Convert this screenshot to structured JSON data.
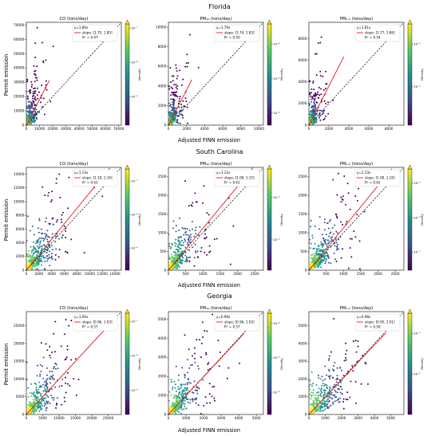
{
  "figure": {
    "shared_xlabel": "Adjusted FINN emission",
    "shared_ylabel": "Permit emission",
    "colorbar_label": "Density",
    "colormap": [
      "#440154",
      "#3b528b",
      "#21918c",
      "#5ec962",
      "#fde725"
    ],
    "fit_line_color": "#e41a1c",
    "identity_line_color": "#000000"
  },
  "rows": [
    {
      "state": "Florida"
    },
    {
      "state": "South Carolina"
    },
    {
      "state": "Georgia"
    }
  ],
  "chart_data": [
    {
      "type": "scatter",
      "state": "Florida",
      "title": "CO (tons/day)",
      "xlim": [
        0,
        72000
      ],
      "ylim": [
        0,
        72000
      ],
      "xticks": [
        0,
        10000,
        20000,
        30000,
        40000,
        50000,
        60000,
        70000
      ],
      "yticks": [
        0,
        10000,
        20000,
        30000,
        40000,
        50000,
        60000,
        70000
      ],
      "legend": {
        "equation": "y=1.80x",
        "slope": "slope: [1.75, 1.85]",
        "r2": "R² = 0.47"
      },
      "fit_slope": 1.8,
      "fit_xmax": 17500,
      "legend_position": "top-left",
      "colorbar": {
        "ticks": [
          "10⁻⁷",
          "10⁻⁸",
          "10⁻⁹"
        ],
        "ticks_frac": [
          0.96,
          0.62,
          0.28
        ]
      },
      "scatter": {
        "seed": 11,
        "n": 380,
        "xscale": 3200,
        "slope": 1.8,
        "spread": 0.75
      }
    },
    {
      "type": "scatter",
      "state": "Florida",
      "title": "PM₁₀ (tons/day)",
      "xlim": [
        0,
        10500
      ],
      "ylim": [
        0,
        10500
      ],
      "xticks": [
        0,
        2000,
        4000,
        6000,
        8000,
        10000
      ],
      "yticks": [
        0,
        2000,
        4000,
        6000,
        8000,
        10000
      ],
      "legend": {
        "equation": "y=1.79x",
        "slope": "slope: [1.74, 1.83]",
        "r2": "R² = 0.50"
      },
      "fit_slope": 1.79,
      "fit_xmax": 2600,
      "legend_position": "top-left",
      "colorbar": {
        "ticks": [
          "10⁻⁴",
          "10⁻⁵",
          "10⁻⁶"
        ],
        "ticks_frac": [
          0.8,
          0.46,
          0.12
        ]
      },
      "scatter": {
        "seed": 23,
        "n": 380,
        "xscale": 500,
        "slope": 1.79,
        "spread": 0.7
      }
    },
    {
      "type": "scatter",
      "state": "Florida",
      "title": "PM₂.₅ (tons/day)",
      "xlim": [
        0,
        9500
      ],
      "ylim": [
        0,
        9500
      ],
      "xticks": [
        0,
        2000,
        4000,
        6000,
        8000
      ],
      "yticks": [
        0,
        2000,
        4000,
        6000,
        8000
      ],
      "legend": {
        "equation": "y=1.81x",
        "slope": "slope: [1.77, 1.86]",
        "r2": "R² = 0.54"
      },
      "fit_slope": 1.81,
      "fit_xmax": 3500,
      "legend_position": "top-left",
      "colorbar": {
        "ticks": [
          "10⁻⁵",
          "10⁻⁶"
        ],
        "ticks_frac": [
          0.8,
          0.38
        ]
      },
      "scatter": {
        "seed": 37,
        "n": 380,
        "xscale": 450,
        "slope": 1.81,
        "spread": 0.7
      }
    },
    {
      "type": "scatter",
      "state": "South Carolina",
      "title": "CO (tons/day)",
      "xlim": [
        0,
        15000
      ],
      "ylim": [
        0,
        15000
      ],
      "xticks": [
        0,
        2000,
        4000,
        6000,
        8000,
        10000,
        12000,
        14000
      ],
      "yticks": [
        0,
        2000,
        4000,
        6000,
        8000,
        10000,
        12000,
        14000
      ],
      "legend": {
        "equation": "y=1.13x",
        "slope": "slope: [1.10, 1.16]",
        "r2": "R² = 0.61"
      },
      "fit_slope": 1.13,
      "fit_xmax": 13200,
      "legend_position": "top-left",
      "colorbar": {
        "ticks": [
          "10⁻⁷",
          "10⁻⁸",
          "10⁻⁹"
        ],
        "ticks_frac": [
          0.88,
          0.55,
          0.22
        ]
      },
      "scatter": {
        "seed": 41,
        "n": 430,
        "xscale": 1800,
        "slope": 1.13,
        "spread": 0.55
      }
    },
    {
      "type": "scatter",
      "state": "South Carolina",
      "title": "PM₁₀ (tons/day)",
      "xlim": [
        0,
        2750
      ],
      "ylim": [
        0,
        2750
      ],
      "xticks": [
        0,
        500,
        1000,
        1500,
        2000,
        2500
      ],
      "yticks": [
        0,
        500,
        1000,
        1500,
        2000,
        2500
      ],
      "legend": {
        "equation": "y=1.12x",
        "slope": "slope: [1.09, 1.15]",
        "r2": "R² = 0.61"
      },
      "fit_slope": 1.12,
      "fit_xmax": 2450,
      "legend_position": "top-left",
      "colorbar": {
        "ticks": [
          "10⁻⁵",
          "10⁻⁶"
        ],
        "ticks_frac": [
          0.72,
          0.3
        ]
      },
      "scatter": {
        "seed": 53,
        "n": 430,
        "xscale": 330,
        "slope": 1.12,
        "spread": 0.55
      }
    },
    {
      "type": "scatter",
      "state": "South Carolina",
      "title": "PM₂.₅ (tons/day)",
      "xlim": [
        0,
        2750
      ],
      "ylim": [
        0,
        2750
      ],
      "xticks": [
        0,
        500,
        1000,
        1500,
        2000,
        2500
      ],
      "yticks": [
        0,
        500,
        1000,
        1500,
        2000,
        2500
      ],
      "legend": {
        "equation": "y=1.13x",
        "slope": "slope: [1.09, 1.16]",
        "r2": "R² = 0.62"
      },
      "fit_slope": 1.13,
      "fit_xmax": 2400,
      "legend_position": "top-left",
      "colorbar": {
        "ticks": [
          "10⁻⁵",
          "10⁻⁶",
          "10⁻⁷"
        ],
        "ticks_frac": [
          0.86,
          0.52,
          0.18
        ]
      },
      "scatter": {
        "seed": 67,
        "n": 430,
        "xscale": 330,
        "slope": 1.13,
        "spread": 0.55
      }
    },
    {
      "type": "scatter",
      "state": "Georgia",
      "title": "CO (tons/day)",
      "xlim": [
        0,
        29000
      ],
      "ylim": [
        0,
        29000
      ],
      "xticks": [
        0,
        5000,
        10000,
        15000,
        20000,
        25000
      ],
      "yticks": [
        0,
        5000,
        10000,
        15000,
        20000,
        25000
      ],
      "legend": {
        "equation": "y=1.00x",
        "slope": "slope: [0.96, 1.03]",
        "r2": "R² = 0.57"
      },
      "fit_slope": 1.0,
      "fit_xmax": 24500,
      "legend_position": "top-left",
      "colorbar": {
        "ticks": [
          "10⁻⁷",
          "10⁻⁸",
          "10⁻⁹"
        ],
        "ticks_frac": [
          0.92,
          0.58,
          0.24
        ]
      },
      "scatter": {
        "seed": 71,
        "n": 430,
        "xscale": 3800,
        "slope": 1.0,
        "spread": 0.55
      }
    },
    {
      "type": "scatter",
      "state": "Georgia",
      "title": "PM₁₀ (tons/day)",
      "xlim": [
        0,
        5400
      ],
      "ylim": [
        0,
        5400
      ],
      "xticks": [
        0,
        1000,
        2000,
        3000,
        4000,
        5000
      ],
      "yticks": [
        0,
        1000,
        2000,
        3000,
        4000,
        5000
      ],
      "legend": {
        "equation": "y=0.99x",
        "slope": "slope: [0.96, 1.02]",
        "r2": "R² = 0.57"
      },
      "fit_slope": 0.99,
      "fit_xmax": 4300,
      "legend_position": "top-left",
      "colorbar": {
        "ticks": [
          "10⁻⁴",
          "10⁻⁵",
          "10⁻⁶"
        ],
        "ticks_frac": [
          0.9,
          0.56,
          0.22
        ]
      },
      "scatter": {
        "seed": 83,
        "n": 430,
        "xscale": 700,
        "slope": 0.99,
        "spread": 0.55
      }
    },
    {
      "type": "scatter",
      "state": "Georgia",
      "title": "PM₂.₅ (tons/day)",
      "xlim": [
        0,
        5800
      ],
      "ylim": [
        0,
        5800
      ],
      "xticks": [
        0,
        1000,
        2000,
        3000,
        4000,
        5000
      ],
      "yticks": [
        0,
        1000,
        2000,
        3000,
        4000,
        5000
      ],
      "legend": {
        "equation": "y=0.98x",
        "slope": "slope: [0.95, 1.01]",
        "r2": "R² = 0.58"
      },
      "fit_slope": 0.98,
      "fit_xmax": 4700,
      "legend_position": "top-left",
      "colorbar": {
        "ticks": [
          "10⁻⁵",
          "10⁻⁶"
        ],
        "ticks_frac": [
          0.8,
          0.4
        ]
      },
      "scatter": {
        "seed": 97,
        "n": 430,
        "xscale": 780,
        "slope": 0.98,
        "spread": 0.55
      }
    }
  ]
}
